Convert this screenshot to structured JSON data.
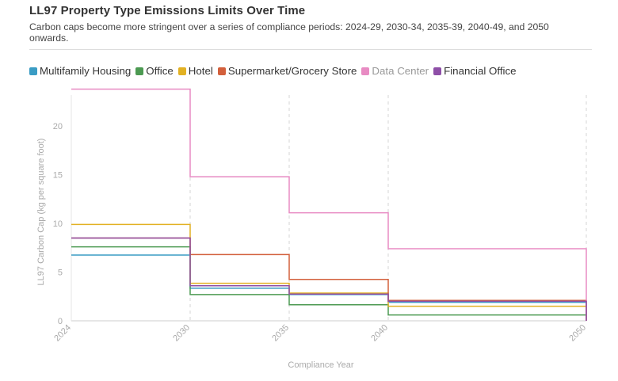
{
  "header": {
    "title": "LL97 Property Type Emissions Limits Over Time",
    "subtitle": "Carbon caps become more stringent over a series of compliance periods: 2024-29, 2030-34, 2035-39, 2040-49, and 2050 onwards."
  },
  "chart_data": {
    "type": "line",
    "step": "after",
    "xlabel": "Compliance Year",
    "ylabel": "LL97 Carbon Cap (kg per square foot)",
    "x": [
      2024,
      2030,
      2035,
      2040,
      2050
    ],
    "xlim": [
      2024,
      2050
    ],
    "ylim": [
      0,
      24
    ],
    "yticks": [
      0,
      5,
      10,
      15,
      20
    ],
    "legend_position": "top-left",
    "series": [
      {
        "name": "Multifamily Housing",
        "color": "#3a9cc4",
        "values": [
          6.75,
          3.35,
          2.7,
          1.9,
          1.9
        ]
      },
      {
        "name": "Office",
        "color": "#4c9a52",
        "values": [
          7.6,
          2.7,
          1.65,
          0.6,
          0.6
        ]
      },
      {
        "name": "Hotel",
        "color": "#e2b123",
        "values": [
          9.9,
          3.85,
          2.85,
          1.5,
          1.5
        ]
      },
      {
        "name": "Supermarket/Grocery Store",
        "color": "#d3603c",
        "values": [
          8.5,
          6.8,
          4.25,
          2.1,
          2.1
        ]
      },
      {
        "name": "Data Center",
        "color": "#e88bc3",
        "values": [
          23.8,
          14.8,
          11.1,
          7.4,
          7.4
        ],
        "muted": true
      },
      {
        "name": "Financial Office",
        "color": "#8e4fa7",
        "values": [
          8.5,
          3.6,
          2.75,
          2.0,
          2.0
        ]
      }
    ]
  }
}
